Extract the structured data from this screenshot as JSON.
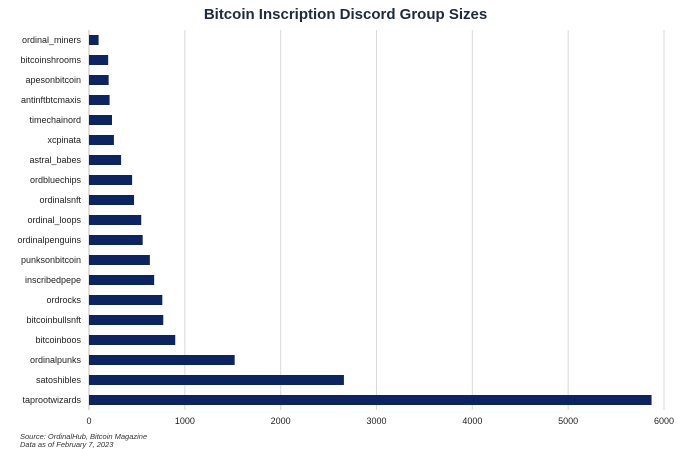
{
  "chart_data": {
    "type": "bar",
    "orientation": "horizontal",
    "title": "Bitcoin Inscription Discord Group Sizes",
    "categories": [
      "ordinal_miners",
      "bitcoinshrooms",
      "apesonbitcoin",
      "antinftbtcmaxis",
      "timechainord",
      "xcpinata",
      "astral_babes",
      "ordbluechips",
      "ordinalsnft",
      "ordinal_loops",
      "ordinalpenguins",
      "punksonbitcoin",
      "inscribedpepe",
      "ordrocks",
      "bitcoinbullsnft",
      "bitcoinboos",
      "ordinalpunks",
      "satoshibles",
      "taprootwizards"
    ],
    "values": [
      100,
      200,
      205,
      215,
      240,
      260,
      335,
      450,
      470,
      545,
      560,
      635,
      680,
      765,
      775,
      900,
      1520,
      2660,
      5870
    ],
    "xticks": [
      0,
      1000,
      2000,
      3000,
      4000,
      5000,
      6000
    ],
    "xlim": [
      0,
      6000
    ],
    "grid": true,
    "bar_color": "#0c2461",
    "source_lines": [
      "Source: OrdinalHub, Bitcoin Magazine",
      "Data as of February 7, 2023"
    ]
  }
}
